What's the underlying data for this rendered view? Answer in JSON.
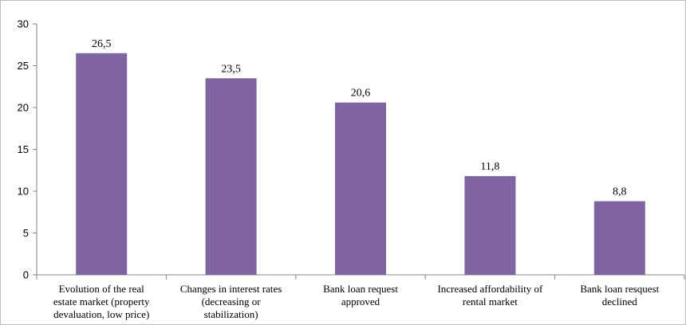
{
  "colors": {
    "bar": "#8064A2",
    "axis": "#868686",
    "background": "#ffffff"
  },
  "chart_data": {
    "type": "bar",
    "title": "",
    "xlabel": "",
    "ylabel": "",
    "ylim": [
      0,
      30
    ],
    "yticks": [
      "0",
      "5",
      "10",
      "15",
      "20",
      "25",
      "30"
    ],
    "grid": false,
    "legend": "none",
    "categories": [
      [
        "Evolution of the real",
        "estate market (property",
        "devaluation, low price)"
      ],
      [
        "Changes in interest rates",
        "(decreasing or",
        "stabilization)"
      ],
      [
        "Bank loan request",
        "approved"
      ],
      [
        "Increased affordability of",
        "rental market"
      ],
      [
        "Bank loan resquest",
        "declined"
      ]
    ],
    "values": [
      26.5,
      23.5,
      20.6,
      11.8,
      8.8
    ],
    "value_labels": [
      "26,5",
      "23,5",
      "20,6",
      "11,8",
      "8,8"
    ]
  }
}
